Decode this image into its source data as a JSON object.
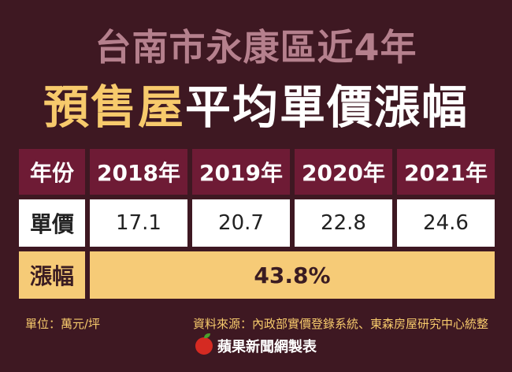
{
  "title": {
    "line1": "台南市永康區近4年",
    "line2_accent": "預售屋",
    "line2_rest": "平均單價漲幅"
  },
  "table": {
    "header": [
      "年份",
      "2018年",
      "2019年",
      "2020年",
      "2021年"
    ],
    "price_row": {
      "label": "單價",
      "values": [
        "17.1",
        "20.7",
        "22.8",
        "24.6"
      ]
    },
    "change_row": {
      "label": "漲幅",
      "value": "43.8%"
    }
  },
  "footer": {
    "unit": "單位：萬元/坪",
    "source": "資料來源：內政部實價登錄系統、東森房屋研究中心統整"
  },
  "brand": "蘋果新聞網製表",
  "colors": {
    "background": "#3e1822",
    "header_cell": "#6e1b35",
    "accent": "#f7ca6c",
    "change_row": "#f6cb77",
    "title_line1": "#b5808d"
  }
}
